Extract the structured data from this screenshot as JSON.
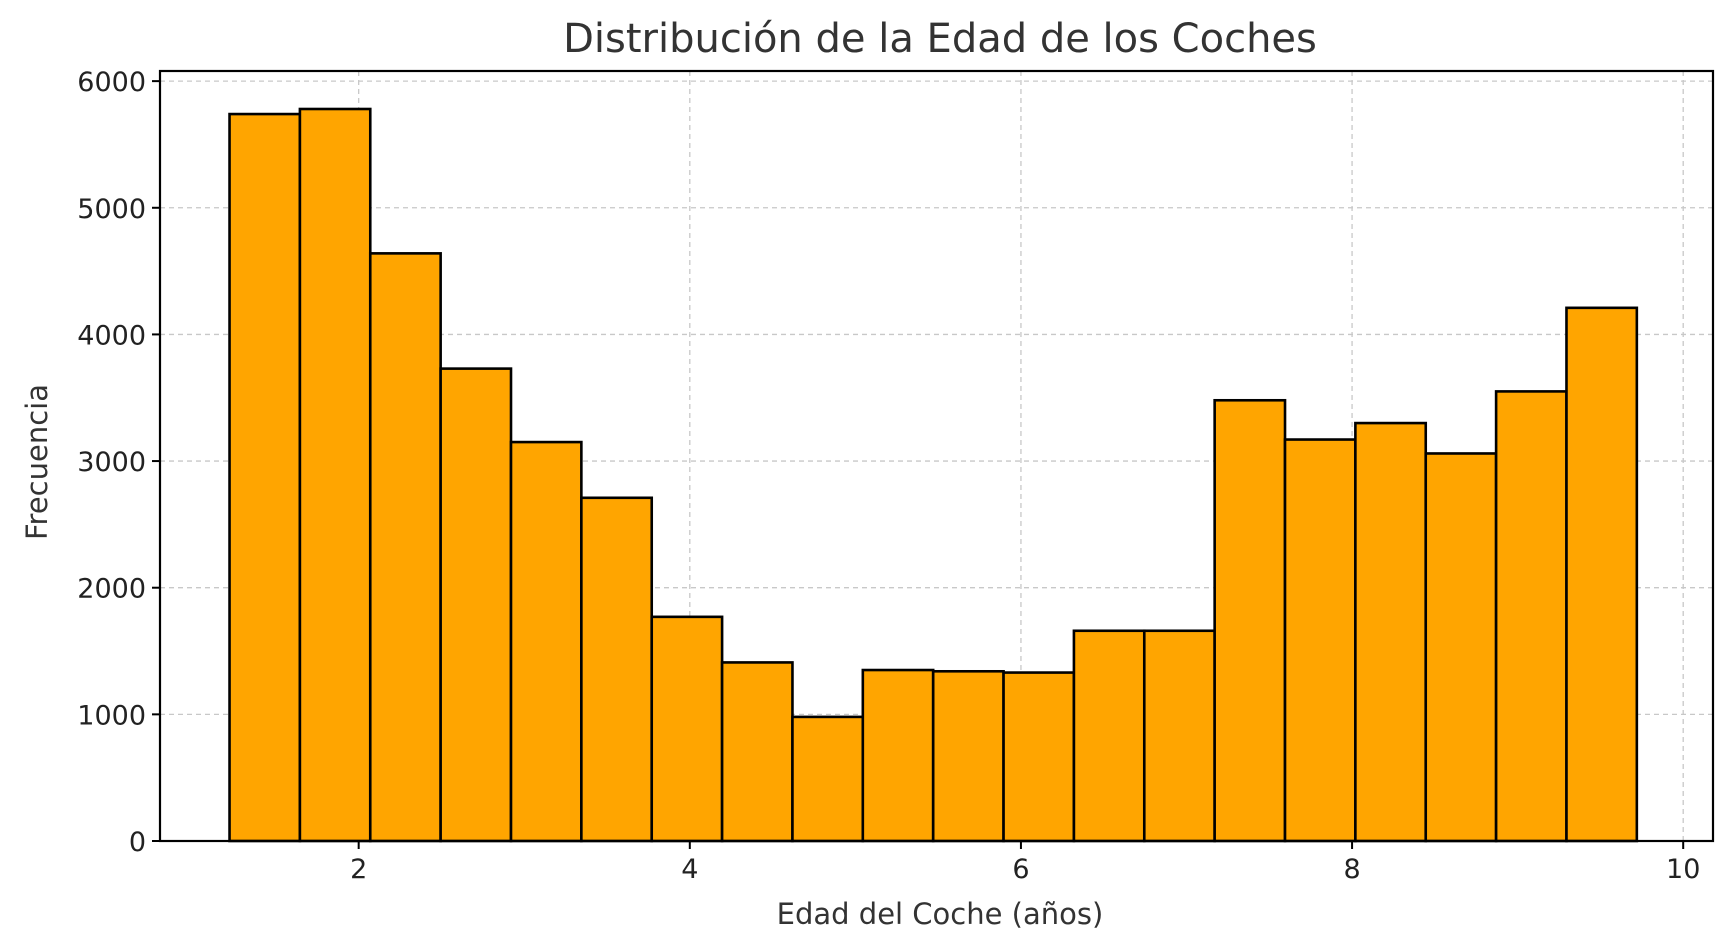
{
  "chart_data": {
    "type": "bar",
    "title": "Distribución de la Edad de los Coches",
    "xlabel": "Edad del Coche (años)",
    "ylabel": "Frecuencia",
    "xlim": [
      0.8,
      10.18
    ],
    "ylim": [
      0,
      6080
    ],
    "xticks": [
      2,
      4,
      6,
      8,
      10
    ],
    "yticks": [
      0,
      1000,
      2000,
      3000,
      4000,
      5000,
      6000
    ],
    "grid": true,
    "bar_color": "#FFA500",
    "edge_color": "#000000",
    "bins": [
      {
        "x0": 1.22,
        "x1": 1.645,
        "value": 5740
      },
      {
        "x0": 1.645,
        "x1": 2.07,
        "value": 5780
      },
      {
        "x0": 2.07,
        "x1": 2.495,
        "value": 4640
      },
      {
        "x0": 2.495,
        "x1": 2.92,
        "value": 3730
      },
      {
        "x0": 2.92,
        "x1": 3.345,
        "value": 3150
      },
      {
        "x0": 3.345,
        "x1": 3.77,
        "value": 2710
      },
      {
        "x0": 3.77,
        "x1": 4.195,
        "value": 1770
      },
      {
        "x0": 4.195,
        "x1": 4.62,
        "value": 1410
      },
      {
        "x0": 4.62,
        "x1": 5.045,
        "value": 980
      },
      {
        "x0": 5.045,
        "x1": 5.47,
        "value": 1350
      },
      {
        "x0": 5.47,
        "x1": 5.895,
        "value": 1340
      },
      {
        "x0": 5.895,
        "x1": 6.32,
        "value": 1330
      },
      {
        "x0": 6.32,
        "x1": 6.745,
        "value": 1660
      },
      {
        "x0": 6.745,
        "x1": 7.17,
        "value": 1660
      },
      {
        "x0": 7.17,
        "x1": 7.595,
        "value": 3480
      },
      {
        "x0": 7.595,
        "x1": 8.02,
        "value": 3170
      },
      {
        "x0": 8.02,
        "x1": 8.445,
        "value": 3300
      },
      {
        "x0": 8.445,
        "x1": 8.87,
        "value": 3060
      },
      {
        "x0": 8.87,
        "x1": 9.295,
        "value": 3550
      },
      {
        "x0": 9.295,
        "x1": 9.72,
        "value": 4210
      }
    ]
  }
}
